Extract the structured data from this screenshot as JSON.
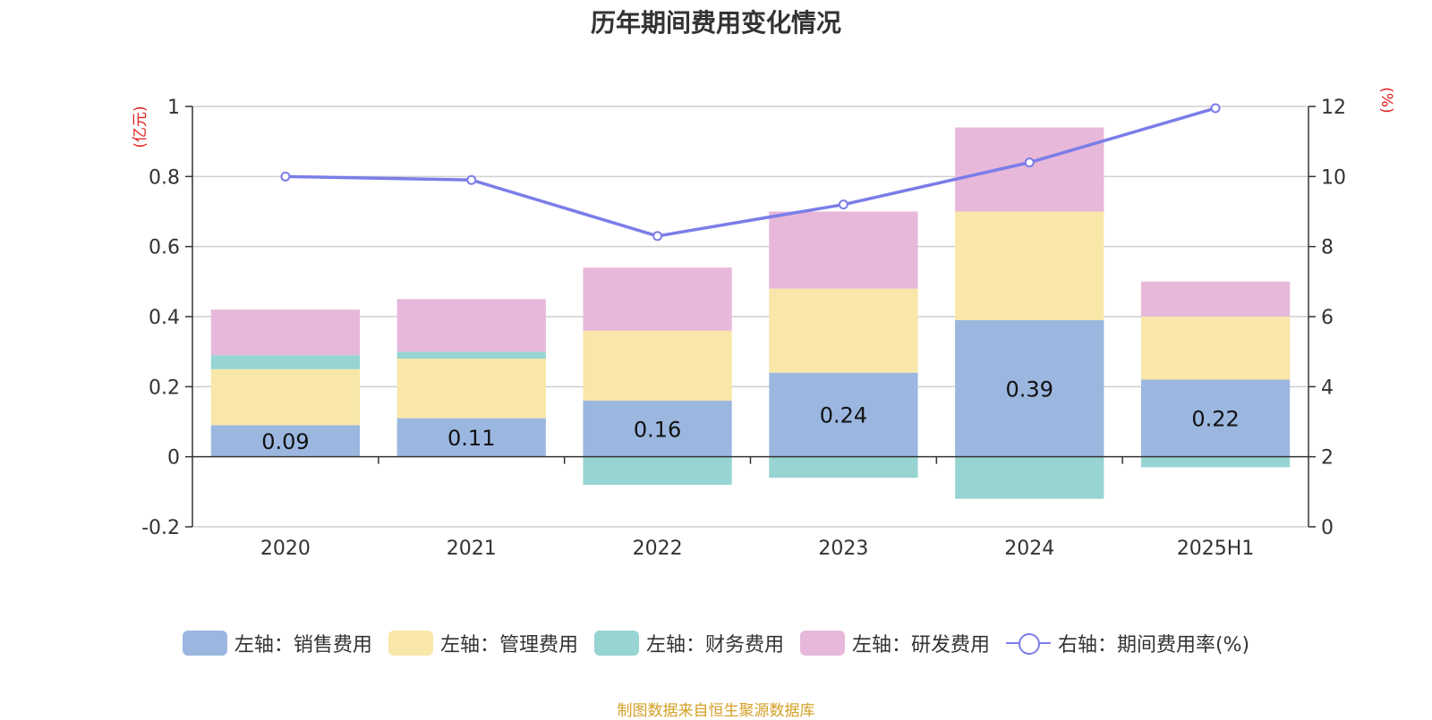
{
  "chart_data": {
    "type": "bar",
    "title": "历年期间费用变化情况",
    "categories": [
      "2020",
      "2021",
      "2022",
      "2023",
      "2024",
      "2025H1"
    ],
    "left_axis": {
      "unit": "(亿元)",
      "ylim": [
        -0.2,
        1
      ],
      "ticks": [
        "-0.2",
        "0",
        "0.2",
        "0.4",
        "0.6",
        "0.8",
        "1"
      ]
    },
    "right_axis": {
      "unit": "(%)",
      "ylim": [
        0,
        12
      ],
      "ticks": [
        "0",
        "2",
        "4",
        "6",
        "8",
        "10",
        "12"
      ]
    },
    "series": [
      {
        "name": "左轴：销售费用",
        "axis": "left",
        "stack": true,
        "color": "#9bb7e0",
        "values": [
          0.09,
          0.11,
          0.16,
          0.24,
          0.39,
          0.22
        ],
        "labels": [
          "0.09",
          "0.11",
          "0.16",
          "0.24",
          "0.39",
          "0.22"
        ]
      },
      {
        "name": "左轴：管理费用",
        "axis": "left",
        "stack": true,
        "color": "#f8e7a8",
        "values": [
          0.16,
          0.17,
          0.2,
          0.24,
          0.31,
          0.18
        ]
      },
      {
        "name": "左轴：财务费用",
        "axis": "left",
        "stack": true,
        "color": "#97d4d2",
        "values": [
          0.04,
          0.02,
          -0.08,
          -0.06,
          -0.12,
          -0.03
        ]
      },
      {
        "name": "左轴：研发费用",
        "axis": "left",
        "stack": true,
        "color": "#e7b8d9",
        "values": [
          0.13,
          0.15,
          0.18,
          0.22,
          0.24,
          0.1
        ]
      },
      {
        "name": "右轴：期间费用率(%)",
        "axis": "right",
        "type": "line",
        "color": "#7b7de8",
        "values": [
          10.0,
          9.9,
          8.3,
          9.2,
          10.4,
          11.95
        ]
      }
    ],
    "grid": true,
    "legend_position": "bottom"
  },
  "source": "制图数据来自恒生聚源数据库"
}
